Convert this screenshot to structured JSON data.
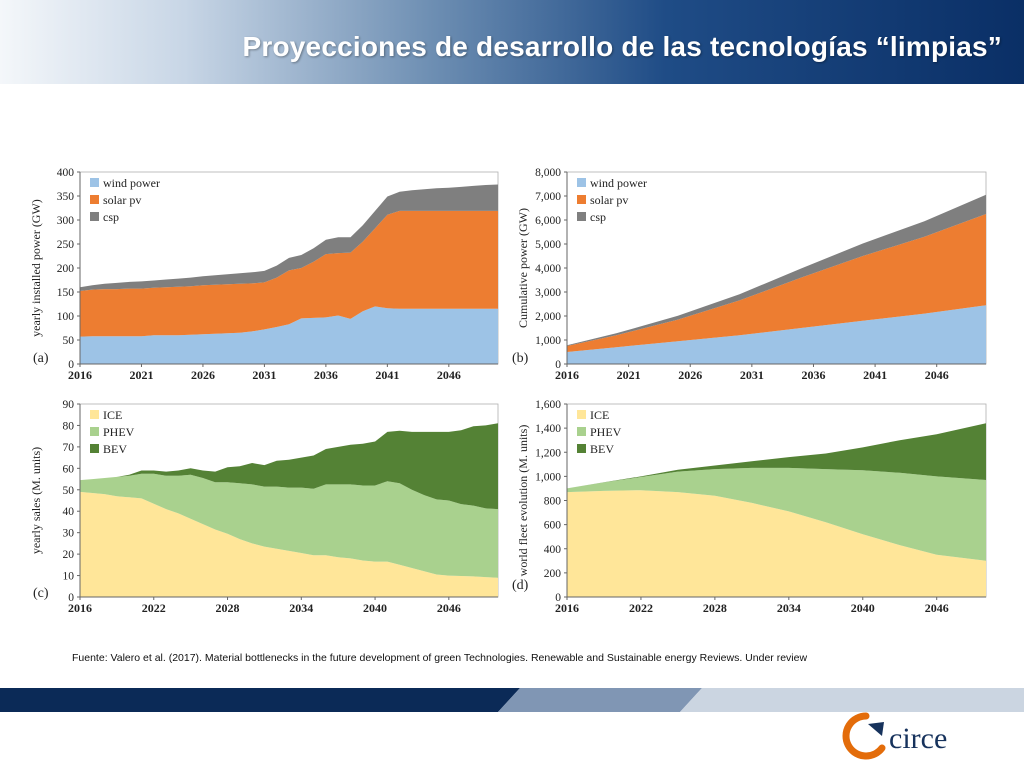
{
  "slide": {
    "title": "Proyecciones de desarrollo de las tecnologías “limpias”",
    "source": "Fuente: Valero et al. (2017). Material bottlenecks in the future development of green Technologies. Renewable and Sustainable energy Reviews. Under review",
    "logo_text": "circe"
  },
  "colors": {
    "wind": "#9dc3e6",
    "solar": "#ed7d31",
    "csp": "#7f7f7f",
    "ice": "#ffe699",
    "phev": "#a9d18e",
    "bev": "#548235",
    "footer_dark": "#0b2a57",
    "footer_mid": "#8096b4",
    "footer_light": "#cbd5e1",
    "logo_orange": "#e36c0a",
    "logo_blue": "#16325c"
  },
  "chart_data": [
    {
      "type": "area",
      "stacked": true,
      "panel": "(a)",
      "ylabel": "yearly installed power (GW)",
      "ylim": [
        0,
        400
      ],
      "yticks": [
        0,
        50,
        100,
        150,
        200,
        250,
        300,
        350,
        400
      ],
      "xlim": [
        2016,
        2050
      ],
      "xticks": [
        2016,
        2021,
        2026,
        2031,
        2036,
        2041,
        2046
      ],
      "x": [
        2016,
        2017,
        2018,
        2019,
        2020,
        2021,
        2022,
        2023,
        2024,
        2025,
        2026,
        2027,
        2028,
        2029,
        2030,
        2031,
        2032,
        2033,
        2034,
        2035,
        2036,
        2037,
        2038,
        2039,
        2040,
        2041,
        2042,
        2043,
        2044,
        2045,
        2046,
        2047,
        2048,
        2049,
        2050
      ],
      "series": [
        {
          "name": "wind power",
          "color_key": "wind",
          "values": [
            57,
            58,
            58,
            58,
            58,
            58,
            60,
            60,
            60,
            61,
            62,
            63,
            64,
            65,
            68,
            72,
            77,
            83,
            95,
            96,
            97,
            101,
            94,
            110,
            120,
            116,
            115,
            115,
            115,
            115,
            115,
            115,
            115,
            115,
            115
          ]
        },
        {
          "name": "solar pv",
          "color_key": "solar",
          "values": [
            95,
            97,
            98,
            98,
            99,
            99,
            99,
            100,
            101,
            101,
            102,
            102,
            102,
            102,
            100,
            98,
            103,
            112,
            105,
            117,
            132,
            130,
            138,
            145,
            163,
            195,
            204,
            204,
            204,
            204,
            204,
            204,
            204,
            204,
            204
          ]
        },
        {
          "name": "csp",
          "color_key": "csp",
          "values": [
            8,
            9,
            11,
            13,
            14,
            15,
            15,
            16,
            17,
            18,
            19,
            20,
            21,
            22,
            23,
            24,
            25,
            26,
            27,
            28,
            30,
            33,
            32,
            34,
            36,
            38,
            40,
            43,
            45,
            47,
            48,
            50,
            52,
            54,
            55
          ]
        }
      ],
      "legend_position": "top-left"
    },
    {
      "type": "area",
      "stacked": true,
      "panel": "(b)",
      "ylabel": "Cumulative power (GW)",
      "ylim": [
        0,
        8000
      ],
      "yticks": [
        0,
        1000,
        2000,
        3000,
        4000,
        5000,
        6000,
        7000,
        8000
      ],
      "ytick_labels": [
        "0",
        "1,000",
        "2,000",
        "3,000",
        "4,000",
        "5,000",
        "6,000",
        "7,000",
        "8,000"
      ],
      "xlim": [
        2016,
        2050
      ],
      "xticks": [
        2016,
        2021,
        2026,
        2031,
        2036,
        2041,
        2046
      ],
      "x": [
        2016,
        2020,
        2025,
        2030,
        2035,
        2040,
        2045,
        2050
      ],
      "series": [
        {
          "name": "wind power",
          "color_key": "wind",
          "values": [
            500,
            700,
            950,
            1200,
            1500,
            1800,
            2100,
            2450
          ]
        },
        {
          "name": "solar pv",
          "color_key": "solar",
          "values": [
            250,
            500,
            900,
            1450,
            2100,
            2700,
            3200,
            3800
          ]
        },
        {
          "name": "csp",
          "color_key": "csp",
          "values": [
            30,
            80,
            160,
            260,
            380,
            520,
            650,
            800
          ]
        }
      ],
      "legend_position": "top-left"
    },
    {
      "type": "area",
      "stacked": true,
      "panel": "(c)",
      "ylabel": "yearly sales (M. units)",
      "ylim": [
        0,
        90
      ],
      "yticks": [
        0,
        10,
        20,
        30,
        40,
        50,
        60,
        70,
        80,
        90
      ],
      "xlim": [
        2016,
        2050
      ],
      "xticks": [
        2016,
        2022,
        2028,
        2034,
        2040,
        2046
      ],
      "x": [
        2016,
        2017,
        2018,
        2019,
        2020,
        2021,
        2022,
        2023,
        2024,
        2025,
        2026,
        2027,
        2028,
        2029,
        2030,
        2031,
        2032,
        2033,
        2034,
        2035,
        2036,
        2037,
        2038,
        2039,
        2040,
        2041,
        2042,
        2043,
        2044,
        2045,
        2046,
        2047,
        2048,
        2049,
        2050
      ],
      "series": [
        {
          "name": "ICE",
          "color_key": "ice",
          "values": [
            49,
            48.5,
            48,
            47,
            46.5,
            46,
            43.5,
            41,
            39,
            36.5,
            34,
            31.5,
            29.5,
            27,
            25,
            23.5,
            22.5,
            21.5,
            20.5,
            19.5,
            19.5,
            18.5,
            18,
            17,
            16.5,
            16.5,
            15,
            13.5,
            12,
            10.5,
            10,
            9.8,
            9.6,
            9.3,
            9
          ]
        },
        {
          "name": "PHEV",
          "color_key": "phev",
          "values": [
            5.5,
            6.5,
            7.5,
            9,
            10,
            11.5,
            14,
            15.5,
            17.5,
            20.5,
            21.5,
            22,
            24,
            26,
            27.5,
            28,
            29,
            29.5,
            30.5,
            31,
            33,
            34,
            34.5,
            35,
            35.5,
            37.5,
            38,
            36.5,
            35.5,
            35,
            35,
            33.5,
            33,
            32,
            32
          ]
        },
        {
          "name": "BEV",
          "color_key": "bev",
          "values": [
            0,
            0,
            0,
            0,
            0.5,
            1.5,
            1.5,
            2,
            2.5,
            3,
            3.5,
            5,
            7,
            8,
            10,
            10,
            12,
            13,
            14,
            15.5,
            16.5,
            17.5,
            18.5,
            19.5,
            20.5,
            23,
            24.5,
            27,
            29.5,
            31.5,
            32,
            34.5,
            37,
            38.7,
            40
          ]
        }
      ],
      "legend_position": "top-left"
    },
    {
      "type": "area",
      "stacked": true,
      "panel": "(d)",
      "ylabel": "world fleet evolution (M. units)",
      "ylim": [
        0,
        1600
      ],
      "yticks": [
        0,
        200,
        400,
        600,
        800,
        1000,
        1200,
        1400,
        1600
      ],
      "ytick_labels": [
        "0",
        "200",
        "400",
        "600",
        "800",
        "1,000",
        "1,200",
        "1,400",
        "1,600"
      ],
      "xlim": [
        2016,
        2050
      ],
      "xticks": [
        2016,
        2022,
        2028,
        2034,
        2040,
        2046
      ],
      "x": [
        2016,
        2019,
        2022,
        2025,
        2028,
        2031,
        2034,
        2037,
        2040,
        2043,
        2046,
        2050
      ],
      "series": [
        {
          "name": "ICE",
          "color_key": "ice",
          "values": [
            870,
            880,
            885,
            870,
            840,
            780,
            710,
            620,
            520,
            430,
            350,
            300
          ]
        },
        {
          "name": "PHEV",
          "color_key": "phev",
          "values": [
            30,
            70,
            110,
            170,
            220,
            290,
            360,
            440,
            530,
            600,
            650,
            670
          ]
        },
        {
          "name": "BEV",
          "color_key": "bev",
          "values": [
            0,
            2,
            5,
            15,
            30,
            55,
            90,
            130,
            190,
            270,
            350,
            470
          ]
        }
      ],
      "legend_position": "top-left"
    }
  ]
}
